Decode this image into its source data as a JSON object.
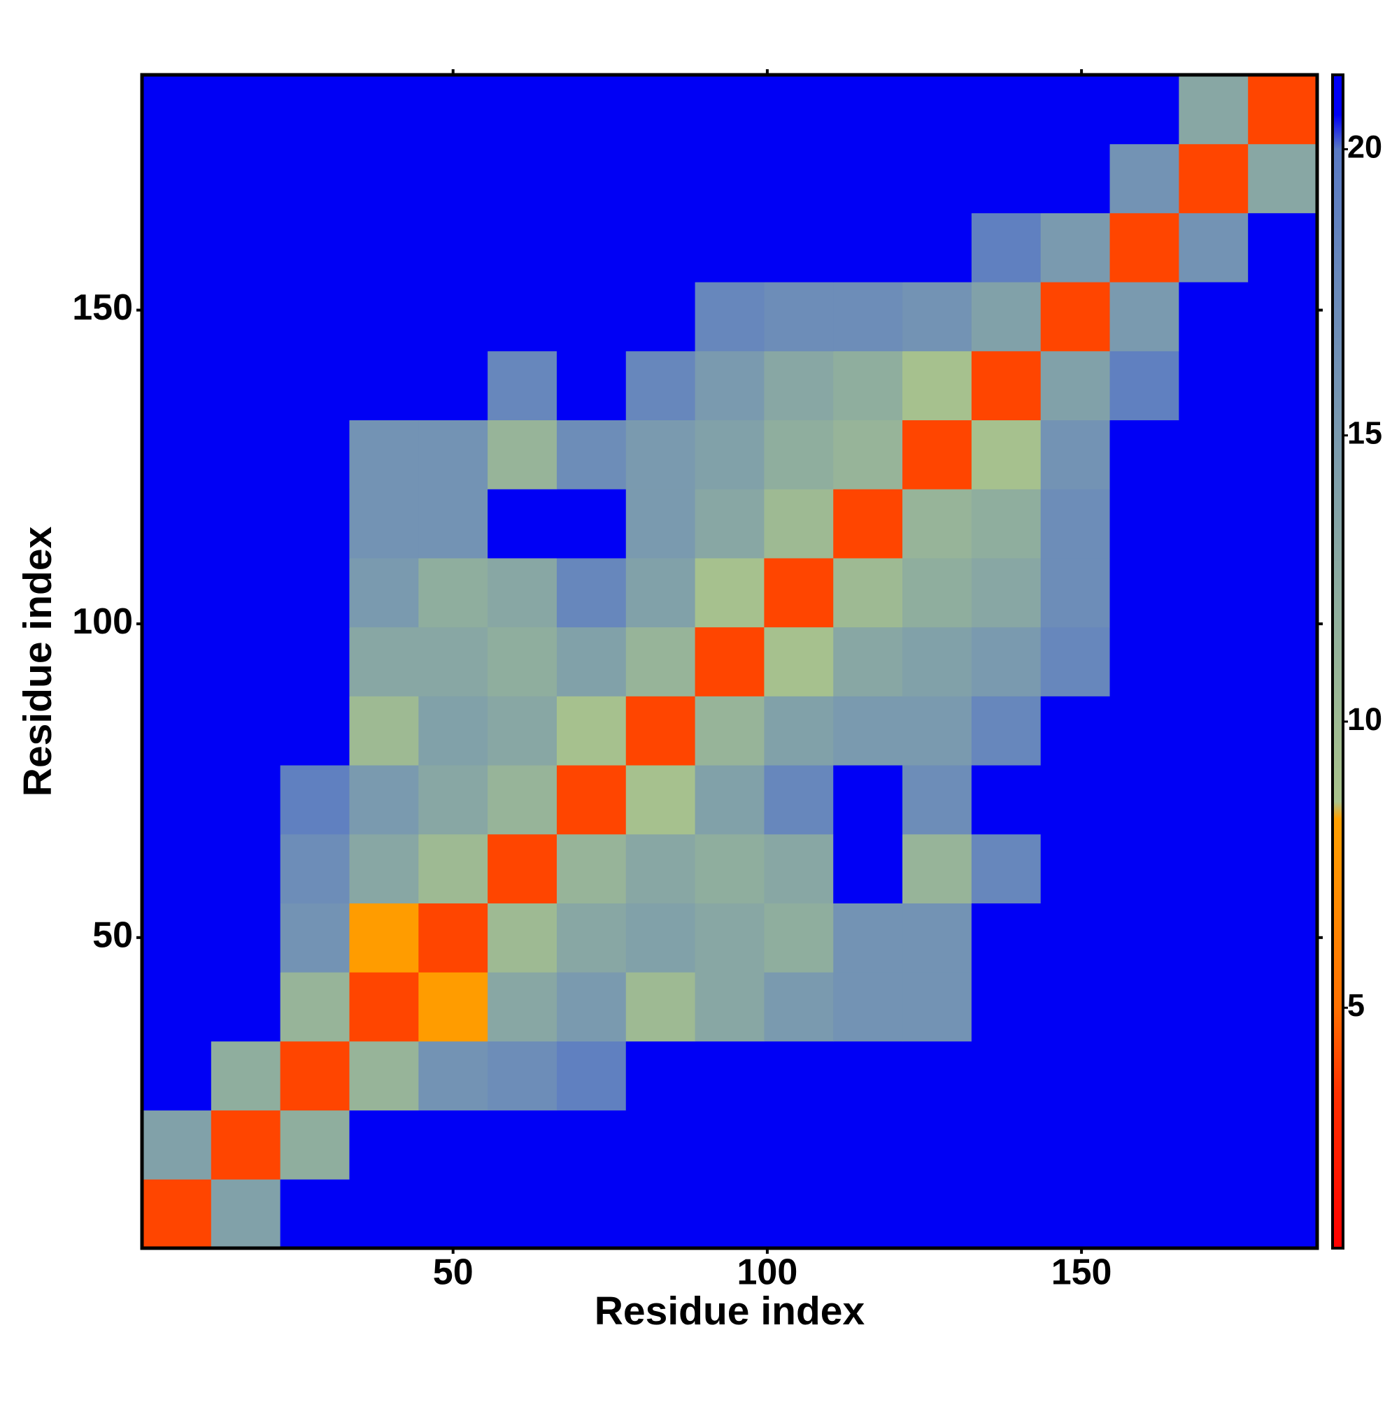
{
  "chart_data": {
    "type": "heatmap",
    "x_label": "Residue index",
    "y_label": "Residue index",
    "x": [
      6,
      17,
      28,
      39,
      50,
      61,
      72,
      83,
      94,
      105,
      116,
      127,
      138,
      149,
      160,
      171,
      182
    ],
    "y": [
      6,
      17,
      28,
      39,
      50,
      61,
      72,
      83,
      94,
      105,
      116,
      127,
      138,
      149,
      160,
      171,
      182
    ],
    "values": [
      [
        4,
        14,
        21,
        21,
        21,
        21,
        21,
        21,
        21,
        21,
        21,
        21,
        21,
        21,
        21,
        21,
        21
      ],
      [
        14,
        4,
        12,
        21,
        21,
        21,
        21,
        21,
        21,
        21,
        21,
        21,
        21,
        21,
        21,
        21,
        21
      ],
      [
        21,
        12,
        4,
        11,
        16,
        17,
        19,
        21,
        21,
        21,
        21,
        21,
        21,
        21,
        21,
        21,
        21
      ],
      [
        21,
        21,
        11,
        4,
        8,
        13,
        15,
        10,
        13,
        15,
        16,
        16,
        21,
        21,
        21,
        21,
        21
      ],
      [
        21,
        21,
        16,
        8,
        4,
        10,
        13,
        14,
        13,
        12,
        16,
        16,
        21,
        21,
        21,
        21,
        21
      ],
      [
        21,
        21,
        17,
        13,
        10,
        4,
        11,
        13,
        12,
        13,
        21,
        11,
        18,
        21,
        21,
        21,
        21
      ],
      [
        21,
        21,
        19,
        15,
        13,
        11,
        4,
        9,
        14,
        18,
        21,
        17,
        21,
        21,
        21,
        21,
        21
      ],
      [
        21,
        21,
        21,
        10,
        14,
        13,
        9,
        4,
        11,
        14,
        15,
        15,
        18,
        21,
        21,
        21,
        21
      ],
      [
        21,
        21,
        21,
        13,
        13,
        12,
        14,
        11,
        4,
        9,
        13,
        14,
        15,
        18,
        21,
        21,
        21
      ],
      [
        21,
        21,
        21,
        15,
        12,
        13,
        18,
        14,
        9,
        4,
        10,
        12,
        13,
        17,
        21,
        21,
        21
      ],
      [
        21,
        21,
        21,
        16,
        16,
        21,
        21,
        15,
        13,
        10,
        4,
        11,
        12,
        17,
        21,
        21,
        21
      ],
      [
        21,
        21,
        21,
        16,
        16,
        11,
        17,
        15,
        14,
        12,
        11,
        4,
        9,
        16,
        21,
        21,
        21
      ],
      [
        21,
        21,
        21,
        21,
        21,
        18,
        21,
        18,
        15,
        13,
        12,
        9,
        4,
        14,
        19,
        21,
        21
      ],
      [
        21,
        21,
        21,
        21,
        21,
        21,
        21,
        21,
        18,
        17,
        17,
        16,
        14,
        4,
        15,
        21,
        21
      ],
      [
        21,
        21,
        21,
        21,
        21,
        21,
        21,
        21,
        21,
        21,
        21,
        21,
        19,
        15,
        4,
        16,
        21
      ],
      [
        21,
        21,
        21,
        21,
        21,
        21,
        21,
        21,
        21,
        21,
        21,
        21,
        21,
        21,
        16,
        4,
        13
      ],
      [
        21,
        21,
        21,
        21,
        21,
        21,
        21,
        21,
        21,
        21,
        21,
        21,
        21,
        21,
        21,
        13,
        4
      ]
    ],
    "xlim": [
      0.5,
      187.5
    ],
    "ylim": [
      0.5,
      187.5
    ],
    "xticks": [
      50,
      100,
      150
    ],
    "yticks": [
      50,
      100,
      150
    ],
    "zlim": [
      0.8,
      21.3
    ],
    "zticks": [
      5,
      10,
      15,
      20
    ],
    "colorscale": [
      {
        "value": 0.8,
        "color": "#ff0000"
      },
      {
        "value": 3.5,
        "color": "#ff3000"
      },
      {
        "value": 5,
        "color": "#ff7000"
      },
      {
        "value": 8.3,
        "color": "#ffa000"
      },
      {
        "value": 8.6,
        "color": "#a9c38c"
      },
      {
        "value": 12,
        "color": "#8fae9e"
      },
      {
        "value": 16,
        "color": "#7393b4"
      },
      {
        "value": 20,
        "color": "#5a7ac4"
      },
      {
        "value": 20.6,
        "color": "#0000f5"
      },
      {
        "value": 21.3,
        "color": "#0000f5"
      }
    ]
  }
}
